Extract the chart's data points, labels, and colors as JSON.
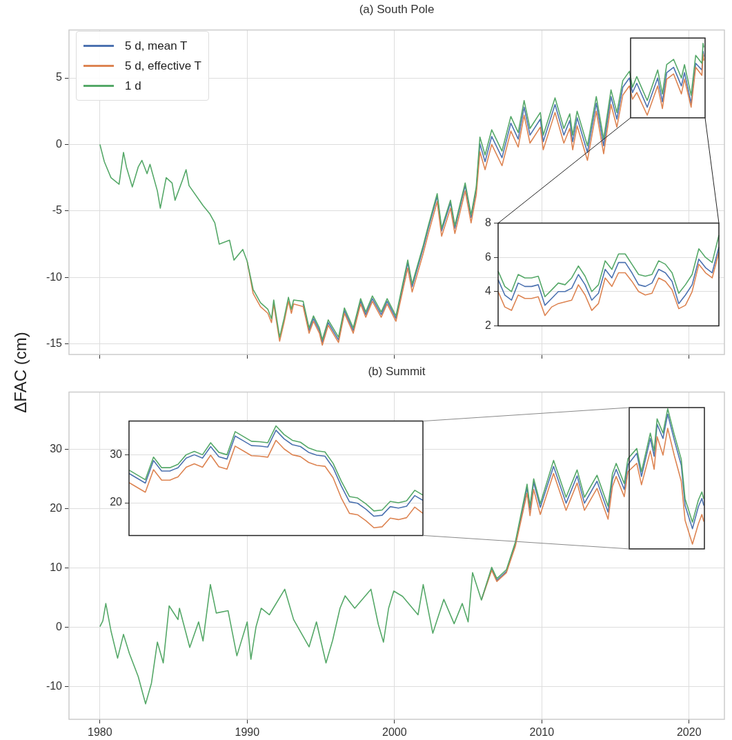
{
  "chart_data": [
    {
      "type": "line",
      "title": "(a) South Pole",
      "ylabel": "ΔFAC (cm)",
      "legend": "top left",
      "grid": true,
      "marker": "none",
      "tick_labels": "y",
      "xlim": [
        1977.9,
        2022.4
      ],
      "ylim": [
        -15.8,
        8.6
      ],
      "xticks": [
        1980,
        1990,
        2000,
        2010,
        2020
      ],
      "yticks": [
        -15,
        -10,
        -5,
        0,
        5
      ],
      "x": [
        1980,
        1980.3,
        1980.75,
        1981.3,
        1981.6,
        1981.8,
        1982.2,
        1982.6,
        1982.85,
        1983.2,
        1983.4,
        1983.9,
        1984.1,
        1984.5,
        1984.9,
        1985.1,
        1985.6,
        1985.85,
        1986.05,
        1987,
        1987.45,
        1987.8,
        1988.1,
        1988.8,
        1989.1,
        1989.7,
        1990,
        1990.4,
        1990.9,
        1991.4,
        1991.65,
        1991.8,
        1992.2,
        1992.5,
        1992.8,
        1993,
        1993.15,
        1993.8,
        1994.2,
        1994.5,
        1994.9,
        1995.1,
        1995.5,
        1996.2,
        1996.6,
        1997.2,
        1997.7,
        1998.05,
        1998.5,
        1999.1,
        1999.5,
        2000.1,
        2000.9,
        2001.2,
        2001.95,
        2002.3,
        2002.9,
        2003.2,
        2003.8,
        2004.1,
        2004.8,
        2005.2,
        2005.55,
        2005.8,
        2006.15,
        2006.6,
        2007.3,
        2007.9,
        2008.4,
        2008.8,
        2009.2,
        2009.9,
        2010.1,
        2010.9,
        2011.5,
        2011.9,
        2012.1,
        2012.4,
        2013.1,
        2013.7,
        2014.2,
        2014.7,
        2015.1,
        2015.5,
        2015.95,
        2016.16,
        2016.45,
        2017.16,
        2017.87,
        2018.19,
        2018.48,
        2018.95,
        2019.48,
        2019.69,
        2020.14,
        2020.45,
        2020.87,
        2020.95,
        2021
      ],
      "series": [
        {
          "name": "5 d, mean T",
          "color": "#4c72b0",
          "values": [
            null,
            null,
            null,
            null,
            null,
            null,
            null,
            null,
            null,
            null,
            null,
            null,
            null,
            null,
            null,
            null,
            null,
            null,
            null,
            null,
            null,
            null,
            null,
            null,
            null,
            null,
            null,
            null,
            null,
            null,
            null,
            null,
            null,
            null,
            null,
            null,
            null,
            -12.0,
            -14.0,
            -13.1,
            -14.0,
            -14.9,
            -13.4,
            -14.7,
            -12.5,
            -14.0,
            -11.8,
            -12.8,
            -11.6,
            -12.8,
            -11.8,
            -13.1,
            -8.9,
            -10.7,
            -7.8,
            -6.3,
            -3.9,
            -6.5,
            -4.4,
            -6.3,
            -3.1,
            -5.5,
            -3.4,
            0.05,
            -1.3,
            0.6,
            -1.0,
            1.6,
            0.4,
            2.8,
            0.7,
            1.9,
            0.2,
            3.0,
            0.7,
            1.8,
            0.2,
            2.0,
            -0.6,
            3.1,
            -0.1,
            3.6,
            1.9,
            4.3,
            5.0,
            3.9,
            4.6,
            2.8,
            5.0,
            3.2,
            5.4,
            5.8,
            4.4,
            5.4,
            3.1,
            6.1,
            5.6,
            7.0,
            6.6
          ]
        },
        {
          "name": "5 d, effective T",
          "color": "#dd8452",
          "values": [
            null,
            null,
            null,
            null,
            null,
            null,
            null,
            null,
            null,
            null,
            null,
            null,
            null,
            null,
            null,
            null,
            null,
            null,
            null,
            null,
            null,
            null,
            null,
            null,
            null,
            null,
            -8.8,
            -11.2,
            -12.2,
            -12.7,
            -13.4,
            -12.0,
            -14.8,
            -13.4,
            -11.8,
            -12.7,
            -12.0,
            -12.2,
            -14.2,
            -13.3,
            -14.2,
            -15.1,
            -13.6,
            -14.9,
            -12.7,
            -14.2,
            -12.0,
            -13.0,
            -11.8,
            -13.0,
            -12.0,
            -13.3,
            -9.3,
            -11.1,
            -8.2,
            -6.7,
            -4.3,
            -6.9,
            -4.8,
            -6.7,
            -3.5,
            -5.9,
            -3.8,
            -0.55,
            -1.9,
            0.0,
            -1.6,
            1.0,
            -0.2,
            2.2,
            0.1,
            1.3,
            -0.4,
            2.4,
            0.1,
            1.2,
            -0.4,
            1.4,
            -1.2,
            2.5,
            -0.7,
            3.0,
            1.3,
            3.7,
            4.4,
            3.4,
            3.9,
            2.2,
            4.4,
            2.7,
            4.9,
            5.3,
            3.8,
            4.9,
            2.8,
            5.8,
            5.2,
            6.8,
            6.3
          ]
        },
        {
          "name": "1 d",
          "color": "#55a868",
          "values": [
            0,
            -1.3,
            -2.5,
            -3.0,
            -0.6,
            -1.7,
            -3.2,
            -1.7,
            -1.2,
            -2.2,
            -1.5,
            -3.5,
            -4.8,
            -2.5,
            -2.9,
            -4.2,
            -2.7,
            -1.9,
            -3.1,
            -4.6,
            -5.2,
            -5.9,
            -7.5,
            -7.2,
            -8.7,
            -7.9,
            -8.8,
            -10.9,
            -11.9,
            -12.4,
            -13.1,
            -11.7,
            -14.5,
            -13.1,
            -11.5,
            -12.4,
            -11.7,
            -11.8,
            -13.8,
            -12.9,
            -13.8,
            -14.7,
            -13.2,
            -14.5,
            -12.3,
            -13.8,
            -11.6,
            -12.6,
            -11.4,
            -12.6,
            -11.6,
            -12.9,
            -8.7,
            -10.5,
            -7.6,
            -6.1,
            -3.7,
            -6.3,
            -4.2,
            -6.1,
            -2.9,
            -5.3,
            -3.2,
            0.55,
            -0.8,
            1.1,
            -0.5,
            2.1,
            0.9,
            3.3,
            1.2,
            2.4,
            0.7,
            3.5,
            1.2,
            2.3,
            0.7,
            2.5,
            -0.1,
            3.6,
            0.4,
            4.1,
            2.4,
            4.8,
            5.5,
            4.3,
            5.1,
            3.3,
            5.6,
            3.8,
            6.0,
            6.4,
            5.0,
            6.0,
            3.7,
            6.7,
            6.1,
            7.6,
            7.3
          ]
        }
      ]
    },
    {
      "type": "line",
      "grid": "y",
      "marker": "none",
      "tick_labels": "y",
      "ylim": [
        2,
        8
      ],
      "yticks": [
        2,
        4,
        6,
        8
      ],
      "categories": [
        null,
        null,
        null,
        null,
        null,
        null,
        null,
        null,
        null,
        null,
        null,
        null,
        null,
        null,
        null,
        null,
        null,
        null,
        null,
        null,
        null,
        null,
        null,
        null,
        null,
        null,
        null,
        null,
        null,
        null,
        null,
        null,
        null,
        null
      ],
      "series": [
        {
          "color": "#4c72b0",
          "values": [
            4.7,
            3.8,
            3.5,
            4.5,
            4.3,
            4.3,
            4.4,
            3.2,
            3.6,
            4.0,
            4.0,
            4.2,
            5.0,
            4.4,
            3.5,
            3.9,
            5.3,
            4.8,
            5.7,
            5.7,
            5.1,
            4.4,
            4.3,
            4.5,
            5.3,
            5.1,
            4.6,
            3.3,
            3.8,
            4.4,
            5.9,
            5.4,
            5.1,
            6.6
          ]
        },
        {
          "color": "#dd8452",
          "values": [
            4.0,
            3.1,
            2.9,
            3.8,
            3.6,
            3.6,
            3.7,
            2.6,
            3.1,
            3.3,
            3.4,
            3.5,
            4.4,
            3.8,
            2.9,
            3.3,
            4.8,
            4.3,
            5.1,
            5.1,
            4.6,
            4.0,
            3.8,
            3.9,
            4.8,
            4.6,
            4.1,
            3.0,
            3.2,
            4.0,
            5.6,
            5.1,
            4.8,
            6.3
          ]
        },
        {
          "color": "#55a868",
          "values": [
            5.2,
            4.3,
            4.0,
            5.0,
            4.8,
            4.8,
            4.9,
            3.7,
            4.1,
            4.5,
            4.4,
            4.8,
            5.5,
            4.9,
            4.0,
            4.4,
            5.8,
            5.3,
            6.2,
            6.2,
            5.6,
            5.0,
            4.9,
            5.0,
            5.8,
            5.6,
            5.1,
            3.9,
            4.4,
            5.0,
            6.5,
            6.0,
            5.7,
            7.3
          ]
        }
      ]
    },
    {
      "type": "line",
      "title": "(b) Summit",
      "grid": true,
      "marker": "none",
      "xlim": [
        1977.9,
        2022.4
      ],
      "ylim": [
        -15.5,
        39.6
      ],
      "xticks": [
        1980,
        1990,
        2000,
        2010,
        2020
      ],
      "yticks": [
        -10,
        0,
        10,
        20,
        30
      ],
      "x": [
        1980,
        1980.2,
        1980.4,
        1980.75,
        1981.2,
        1981.6,
        1982,
        1982.6,
        1983.1,
        1983.5,
        1983.9,
        1984.3,
        1984.7,
        1985.3,
        1985.4,
        1986.1,
        1986.7,
        1987,
        1987.5,
        1987.9,
        1988.7,
        1989.3,
        1990,
        1990.25,
        1990.6,
        1990.95,
        1991.5,
        1992.55,
        1993.15,
        1994.2,
        1994.7,
        1995.35,
        1995.8,
        1996.3,
        1996.65,
        1997.3,
        1998.4,
        1998.9,
        1999.25,
        1999.6,
        1999.95,
        2000.55,
        2001.6,
        2001.95,
        2002.6,
        2003.35,
        2004.05,
        2004.6,
        2005,
        2005.3,
        2005.9,
        2006.6,
        2006.95,
        2007.6,
        2008.2,
        2008.7,
        2009,
        2009.2,
        2009.45,
        2009.9,
        2010.8,
        2011.65,
        2012.4,
        2012.9,
        2013.75,
        2014.5,
        2014.8,
        2015.05,
        2015.6,
        2015.85,
        2016.45,
        2016.77,
        2017.37,
        2017.63,
        2017.83,
        2018.23,
        2018.55,
        2019,
        2019.47,
        2019.73,
        2020.23,
        2020.63,
        2020.87,
        2021
      ],
      "series": [
        {
          "color": "#4c72b0",
          "values": [
            null,
            null,
            null,
            null,
            null,
            null,
            null,
            null,
            null,
            null,
            null,
            null,
            null,
            null,
            null,
            null,
            null,
            null,
            null,
            null,
            null,
            null,
            null,
            null,
            null,
            null,
            null,
            null,
            null,
            null,
            null,
            null,
            null,
            null,
            null,
            null,
            null,
            null,
            null,
            null,
            null,
            null,
            null,
            null,
            null,
            null,
            null,
            null,
            null,
            null,
            4.6,
            9.8,
            7.9,
            9.4,
            14.0,
            19.8,
            23.5,
            19.8,
            24.4,
            20.2,
            27.1,
            20.9,
            25.5,
            20.9,
            24.6,
            19.4,
            24.9,
            26.6,
            23.2,
            27.4,
            29.3,
            25.4,
            31.8,
            28.8,
            34.2,
            31.8,
            35.9,
            31.5,
            27.3,
            20.5,
            16.6,
            20.3,
            21.7,
            20.5
          ]
        },
        {
          "color": "#dd8452",
          "values": [
            null,
            null,
            null,
            null,
            null,
            null,
            null,
            null,
            null,
            null,
            null,
            null,
            null,
            null,
            null,
            null,
            null,
            null,
            null,
            null,
            null,
            null,
            null,
            null,
            null,
            null,
            null,
            null,
            null,
            null,
            null,
            null,
            null,
            null,
            null,
            null,
            null,
            null,
            null,
            null,
            null,
            null,
            null,
            null,
            null,
            null,
            null,
            null,
            null,
            null,
            4.6,
            9.6,
            7.7,
            9.2,
            13.6,
            19.2,
            22.6,
            18.8,
            23.2,
            19.0,
            25.9,
            19.7,
            24.3,
            19.7,
            23.4,
            18.2,
            23.7,
            25.4,
            22.0,
            26.2,
            27.6,
            24.0,
            29.7,
            26.6,
            32.1,
            29.0,
            33.5,
            28.9,
            24.6,
            18.0,
            14.0,
            17.4,
            19.0,
            17.8
          ]
        },
        {
          "color": "#55a868",
          "values": [
            0.1,
            1.1,
            4.0,
            -0.6,
            -5.2,
            -1.2,
            -4.4,
            -8.3,
            -12.9,
            -9.4,
            -2.5,
            -6.0,
            3.6,
            1.3,
            3.2,
            -3.4,
            0.9,
            -2.3,
            7.2,
            2.4,
            2.8,
            -4.8,
            0.9,
            -5.4,
            0.1,
            3.2,
            2.1,
            6.4,
            1.3,
            -3.3,
            0.9,
            -6.0,
            -2.2,
            3.2,
            5.3,
            3.2,
            6.4,
            0.5,
            -2.5,
            3.2,
            6.1,
            5.2,
            2.1,
            7.2,
            -1.0,
            4.7,
            0.6,
            4.0,
            0.9,
            9.2,
            4.6,
            10.1,
            8.2,
            9.7,
            14.3,
            20.4,
            24.1,
            20.4,
            25.0,
            20.8,
            28.1,
            21.9,
            26.5,
            21.9,
            25.6,
            20.4,
            25.9,
            27.6,
            24.2,
            28.4,
            30.1,
            26.2,
            32.7,
            29.7,
            35.1,
            32.7,
            36.8,
            32.4,
            28.3,
            21.6,
            17.7,
            21.4,
            22.8,
            21.6
          ]
        }
      ]
    },
    {
      "type": "line",
      "grid": "y",
      "marker": "none",
      "tick_labels": "y",
      "ylim": [
        13.2,
        37
      ],
      "yticks": [
        20,
        30
      ],
      "categories": [
        null,
        null,
        null,
        null,
        null,
        null,
        null,
        null,
        null,
        null,
        null,
        null,
        null,
        null,
        null,
        null,
        null,
        null,
        null,
        null,
        null,
        null,
        null,
        null,
        null,
        null,
        null,
        null,
        null,
        null,
        null,
        null,
        null,
        null,
        null,
        null,
        null
      ],
      "series": [
        {
          "color": "#4c72b0",
          "values": [
            26.1,
            25.1,
            24.1,
            28.8,
            26.6,
            26.6,
            27.3,
            29.3,
            30.0,
            29.3,
            31.7,
            29.6,
            29.1,
            33.9,
            32.9,
            31.9,
            31.8,
            31.6,
            35.1,
            33.3,
            32.1,
            31.7,
            30.5,
            29.9,
            29.7,
            27.3,
            23.5,
            20.2,
            19.9,
            18.7,
            17.2,
            17.4,
            19.2,
            18.9,
            19.3,
            21.5,
            20.5
          ]
        },
        {
          "color": "#dd8452",
          "values": [
            24.2,
            23.2,
            22.2,
            26.9,
            24.7,
            24.7,
            25.4,
            27.4,
            28.1,
            27.4,
            29.9,
            27.5,
            27.0,
            31.8,
            30.8,
            29.8,
            29.7,
            29.5,
            33.0,
            31.2,
            30.0,
            29.6,
            28.4,
            27.8,
            27.6,
            25.2,
            21.0,
            17.8,
            17.5,
            16.3,
            14.8,
            15.0,
            16.8,
            16.5,
            16.9,
            19.1,
            17.8
          ]
        },
        {
          "color": "#55a868",
          "values": [
            26.8,
            25.8,
            24.8,
            29.5,
            27.3,
            27.3,
            28.0,
            30.0,
            30.7,
            30.0,
            32.5,
            30.5,
            30.0,
            34.8,
            33.8,
            32.8,
            32.7,
            32.5,
            36.0,
            34.2,
            33.0,
            32.6,
            31.4,
            30.8,
            30.6,
            28.2,
            24.5,
            21.3,
            21.0,
            19.8,
            18.3,
            18.5,
            20.3,
            20.0,
            20.4,
            22.6,
            21.6
          ]
        }
      ]
    }
  ]
}
